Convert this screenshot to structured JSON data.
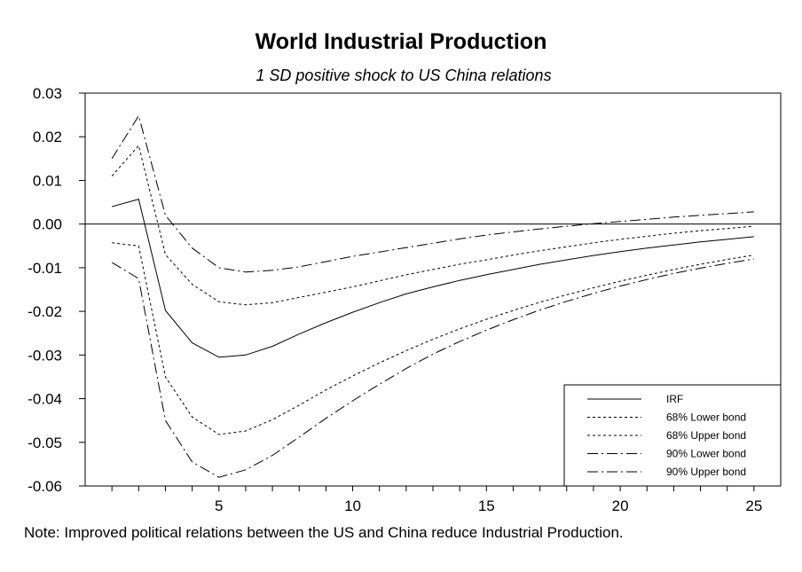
{
  "chart_data": {
    "type": "line",
    "title": "World Industrial Production",
    "subtitle": "1 SD positive shock to US China relations",
    "xlabel": "",
    "ylabel": "",
    "xlim": [
      0,
      26
    ],
    "ylim": [
      -0.06,
      0.03
    ],
    "x_ticks": [
      5,
      10,
      15,
      20,
      25
    ],
    "y_ticks": [
      0.03,
      0.02,
      0.01,
      0.0,
      -0.01,
      -0.02,
      -0.03,
      -0.04,
      -0.05,
      -0.06
    ],
    "y_tick_labels": [
      "0.03",
      "0.02",
      "0.01",
      "0.00",
      "-0.01",
      "-0.02",
      "-0.03",
      "-0.04",
      "-0.05",
      "-0.06"
    ],
    "zero_line": true,
    "grid": false,
    "legend_position": "bottom-right",
    "x": [
      1,
      2,
      3,
      4,
      5,
      6,
      7,
      8,
      9,
      10,
      11,
      12,
      13,
      14,
      15,
      16,
      17,
      18,
      19,
      20,
      21,
      22,
      23,
      24,
      25
    ],
    "series": [
      {
        "name": "IRF",
        "style": "solid",
        "values": [
          0.004,
          0.0057,
          -0.0198,
          -0.0272,
          -0.0305,
          -0.03,
          -0.028,
          -0.0252,
          -0.0226,
          -0.0202,
          -0.018,
          -0.016,
          -0.0144,
          -0.0129,
          -0.0116,
          -0.0104,
          -0.0092,
          -0.0082,
          -0.0072,
          -0.0063,
          -0.0055,
          -0.0048,
          -0.0041,
          -0.0035,
          -0.0029
        ]
      },
      {
        "name": "68% Lower bond",
        "style": "dotted",
        "values": [
          -0.0043,
          -0.005,
          -0.035,
          -0.0442,
          -0.0482,
          -0.0474,
          -0.0448,
          -0.0415,
          -0.038,
          -0.0348,
          -0.0318,
          -0.029,
          -0.0264,
          -0.024,
          -0.0218,
          -0.0198,
          -0.0179,
          -0.0162,
          -0.0146,
          -0.0131,
          -0.0117,
          -0.0104,
          -0.0092,
          -0.0081,
          -0.0071
        ]
      },
      {
        "name": "68% Upper bond",
        "style": "dotted",
        "values": [
          0.011,
          0.018,
          -0.007,
          -0.0138,
          -0.0178,
          -0.0185,
          -0.018,
          -0.0168,
          -0.0156,
          -0.0144,
          -0.013,
          -0.0116,
          -0.0104,
          -0.0092,
          -0.0082,
          -0.0071,
          -0.0061,
          -0.0052,
          -0.0043,
          -0.0035,
          -0.0028,
          -0.0021,
          -0.0015,
          -0.001,
          -0.0005
        ]
      },
      {
        "name": "90% Lower bond",
        "style": "dashdot",
        "values": [
          -0.0088,
          -0.0125,
          -0.045,
          -0.0545,
          -0.058,
          -0.0563,
          -0.053,
          -0.0488,
          -0.0445,
          -0.0405,
          -0.0367,
          -0.0331,
          -0.0298,
          -0.0269,
          -0.0243,
          -0.0219,
          -0.0197,
          -0.0177,
          -0.0159,
          -0.0142,
          -0.0127,
          -0.0113,
          -0.0101,
          -0.009,
          -0.008
        ]
      },
      {
        "name": "90% Upper bond",
        "style": "dashdot",
        "values": [
          0.015,
          0.0248,
          0.002,
          -0.0055,
          -0.01,
          -0.011,
          -0.0106,
          -0.0098,
          -0.0086,
          -0.0074,
          -0.0064,
          -0.0054,
          -0.0044,
          -0.0034,
          -0.0025,
          -0.0018,
          -0.0011,
          -0.0005,
          0.0001,
          0.0006,
          0.0011,
          0.0016,
          0.002,
          0.0024,
          0.0028
        ]
      }
    ],
    "legend": [
      "IRF",
      "68% Lower bond",
      "68% Upper bond",
      "90% Lower bond",
      "90% Upper bond"
    ]
  },
  "note": "Note: Improved political relations between the US and China reduce Industrial Production."
}
